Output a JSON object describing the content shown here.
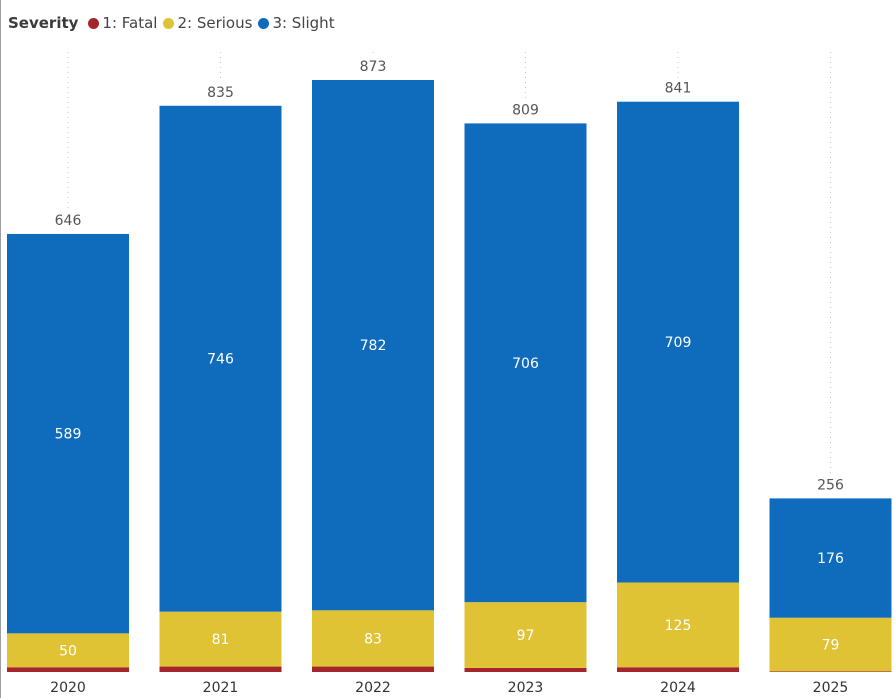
{
  "legend": {
    "title": "Severity",
    "items": [
      {
        "label": "1: Fatal",
        "color": "#a4262c"
      },
      {
        "label": "2: Serious",
        "color": "#e0c235"
      },
      {
        "label": "3: Slight",
        "color": "#0f6cbd"
      }
    ]
  },
  "chart_data": {
    "type": "bar",
    "stacked": true,
    "title": "",
    "xlabel": "",
    "ylabel": "",
    "categories": [
      "2020",
      "2021",
      "2022",
      "2023",
      "2024",
      "2025"
    ],
    "series": [
      {
        "name": "1: Fatal",
        "color": "#a4262c",
        "values": [
          7,
          8,
          8,
          6,
          7,
          1
        ]
      },
      {
        "name": "2: Serious",
        "color": "#e0c235",
        "values": [
          50,
          81,
          83,
          97,
          125,
          79
        ]
      },
      {
        "name": "3: Slight",
        "color": "#0f6cbd",
        "values": [
          589,
          746,
          782,
          706,
          709,
          176
        ]
      }
    ],
    "totals": [
      646,
      835,
      873,
      809,
      841,
      256
    ],
    "ylim": [
      0,
      873
    ],
    "grid": false,
    "legend": "top-left"
  }
}
